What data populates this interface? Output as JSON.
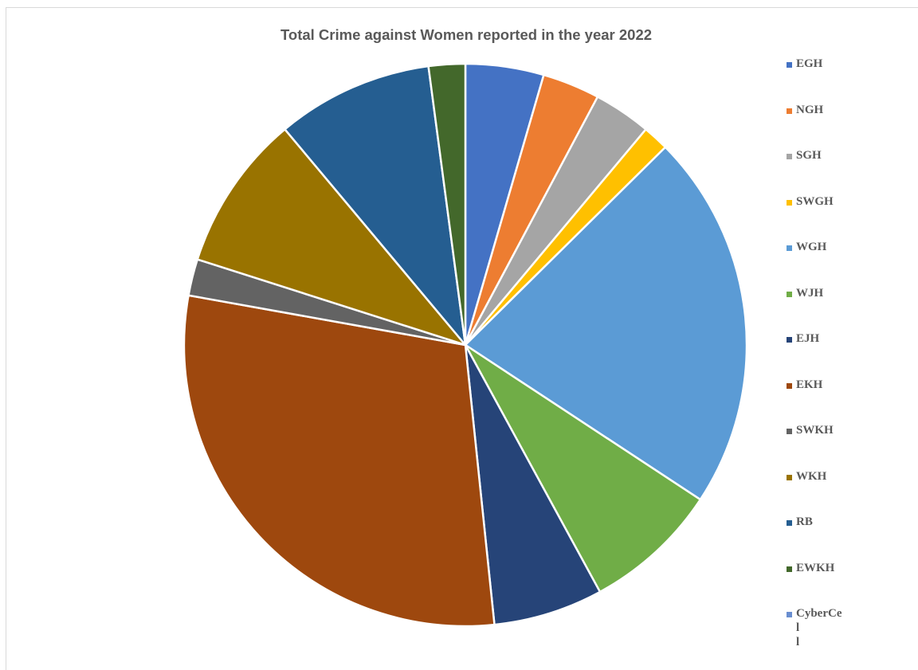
{
  "chart_data": {
    "type": "pie",
    "title": "Total Crime against Women reported in the year 2022",
    "legend_position": "right",
    "categories": [
      "EGH",
      "NGH",
      "SGH",
      "SWGH",
      "WGH",
      "WJH",
      "EJH",
      "EKH",
      "SWKH",
      "WKH",
      "RB",
      "EWKH",
      "CyberCell"
    ],
    "legend_labels": [
      "EGH",
      "NGH",
      "SGH",
      "SWGH",
      "WGH",
      "WJH",
      "EJH",
      "EKH",
      "SWKH",
      "WKH",
      "RB",
      "EWKH",
      "CyberCel\nl"
    ],
    "values": [
      4.5,
      3.3,
      3.3,
      1.5,
      21.7,
      7.8,
      6.3,
      29.5,
      2.1,
      9.0,
      9.0,
      2.1,
      0
    ],
    "colors": [
      "#4472c4",
      "#ed7d31",
      "#a5a5a5",
      "#ffc000",
      "#5b9bd5",
      "#70ad47",
      "#264478",
      "#9e480e",
      "#636363",
      "#997300",
      "#255e91",
      "#43682b",
      "#698ed0"
    ]
  }
}
